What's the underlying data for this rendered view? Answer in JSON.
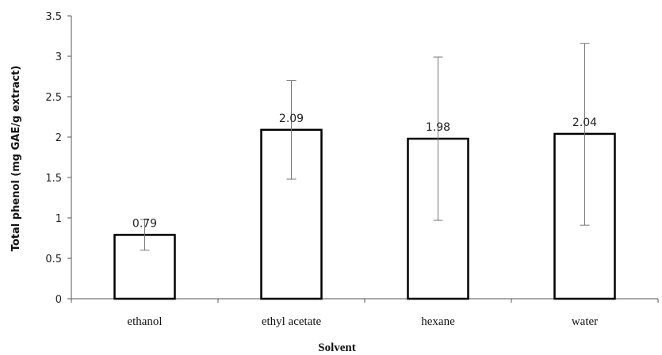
{
  "chart_data": {
    "type": "bar",
    "categories": [
      "ethanol",
      "ethyl acetate",
      "hexane",
      "water"
    ],
    "values": [
      0.79,
      2.09,
      1.98,
      2.04
    ],
    "data_labels": [
      "0.79",
      "2.09",
      "1.98",
      "2.04"
    ],
    "error_low": [
      0.6,
      1.48,
      0.97,
      0.91
    ],
    "error_high": [
      0.98,
      2.7,
      2.99,
      3.16
    ],
    "xlabel": "Solvent",
    "ylabel": "Total phenol (mg GAE/g extract)",
    "ylim": [
      0,
      3.5
    ],
    "yticks": [
      0,
      0.5,
      1,
      1.5,
      2,
      2.5,
      3,
      3.5
    ],
    "ytick_labels": [
      "0",
      "0.5",
      "1",
      "1.5",
      "2",
      "2.5",
      "3",
      "3.5"
    ],
    "grid": false,
    "legend": "none",
    "bar_fill": "#ffffff",
    "bar_stroke": "#000000",
    "error_bar_color": "#777777"
  }
}
